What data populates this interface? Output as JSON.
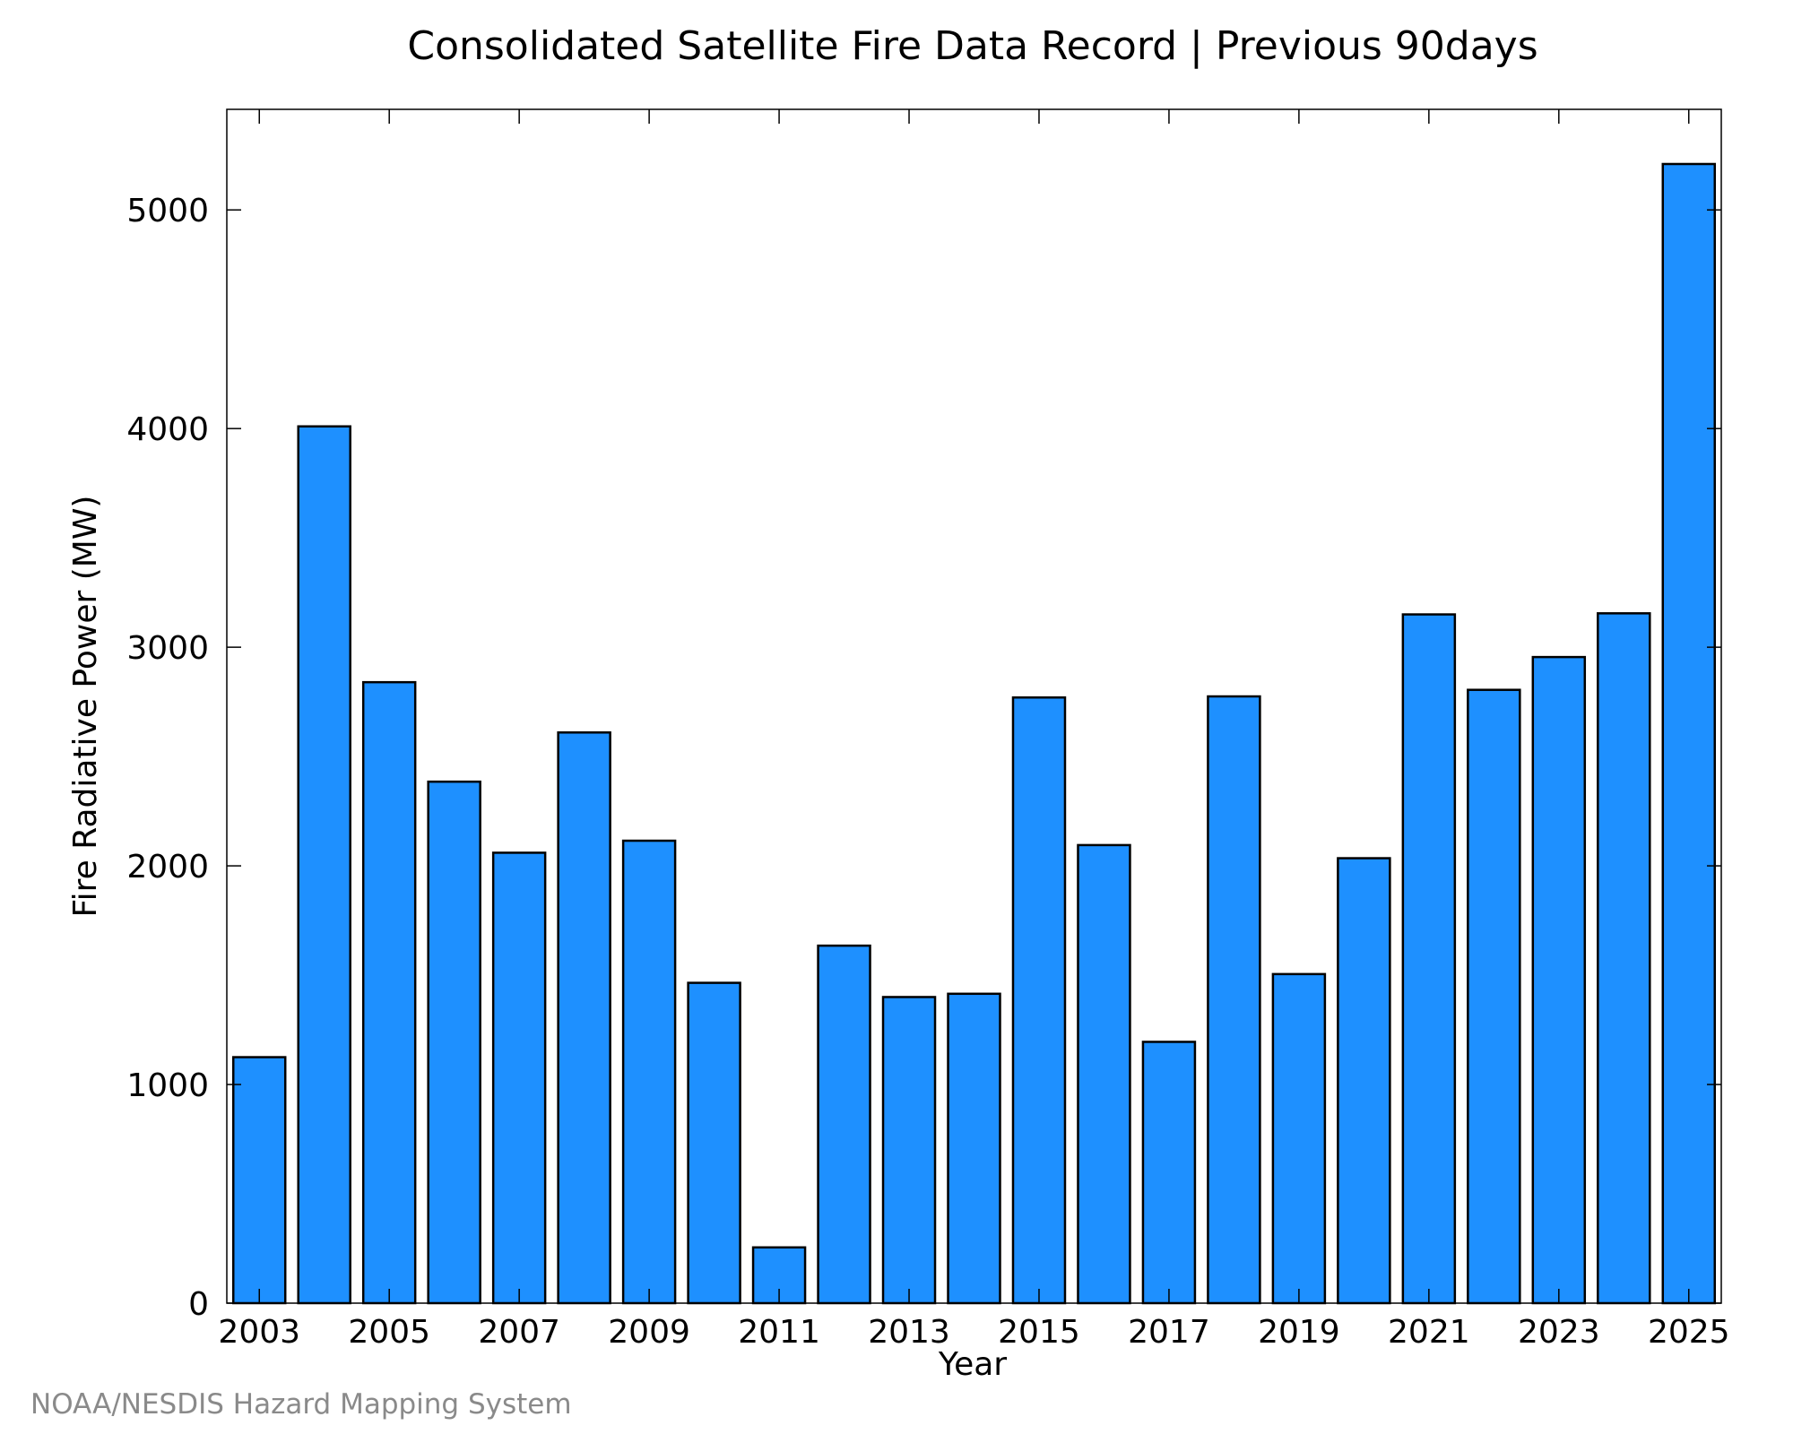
{
  "chart_data": {
    "type": "bar",
    "title": "Consolidated Satellite Fire Data Record | Previous 90days",
    "xlabel": "Year",
    "ylabel": "Fire Radiative Power (MW)",
    "source": "NOAA/NESDIS Hazard Mapping System",
    "categories": [
      "2003",
      "2004",
      "2005",
      "2006",
      "2007",
      "2008",
      "2009",
      "2010",
      "2011",
      "2012",
      "2013",
      "2014",
      "2015",
      "2016",
      "2017",
      "2018",
      "2019",
      "2020",
      "2021",
      "2022",
      "2023",
      "2024",
      "2025"
    ],
    "values": [
      1125,
      4010,
      2840,
      2385,
      2060,
      2610,
      2115,
      1465,
      255,
      1635,
      1400,
      1415,
      2770,
      2095,
      1195,
      2775,
      1505,
      2035,
      3150,
      2805,
      2955,
      3155,
      5210
    ],
    "xticks": [
      "2003",
      "2005",
      "2007",
      "2009",
      "2011",
      "2013",
      "2015",
      "2017",
      "2019",
      "2021",
      "2023",
      "2025"
    ],
    "yticks": [
      "0",
      "1000",
      "2000",
      "3000",
      "4000",
      "5000"
    ],
    "ylim": [
      0,
      5460
    ],
    "grid": false,
    "colors": {
      "bar_fill": "#1e90ff",
      "bar_stroke": "#000000"
    }
  }
}
